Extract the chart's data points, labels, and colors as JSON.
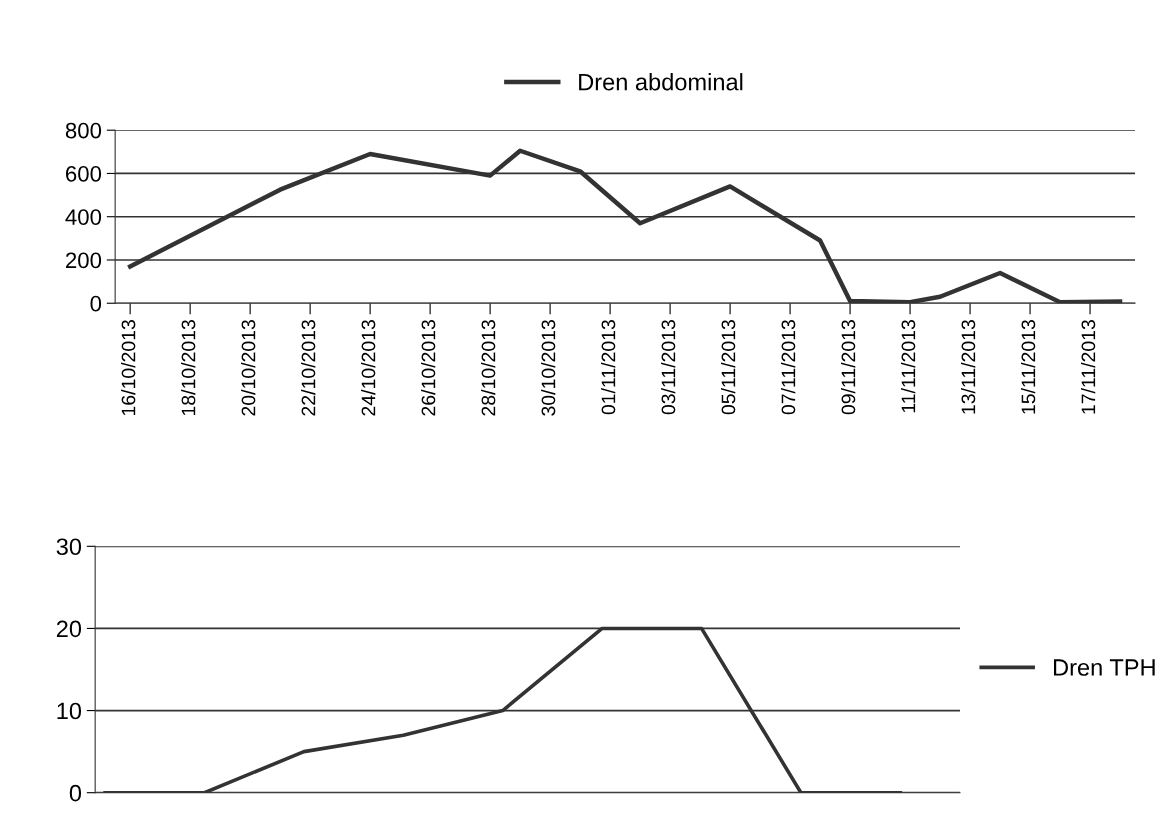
{
  "chart_data": [
    {
      "type": "line",
      "x": [
        "2013-10-16",
        "2013-10-21",
        "2013-10-24",
        "2013-10-28",
        "2013-10-29",
        "2013-10-31",
        "2013-11-02",
        "2013-11-05",
        "2013-11-08",
        "2013-11-09",
        "2013-11-11",
        "2013-11-12",
        "2013-11-14",
        "2013-11-16",
        "2013-11-18"
      ],
      "series": [
        {
          "name": "Dren abdominal",
          "color": "#333333",
          "values": [
            170,
            525,
            690,
            590,
            705,
            610,
            370,
            540,
            290,
            10,
            5,
            30,
            140,
            5,
            8
          ]
        }
      ],
      "xlim": [
        "2013-10-15T12:00",
        "2013-11-18T12:00"
      ],
      "xticks": [
        {
          "value": "2013-10-16",
          "label": "16/10/2013"
        },
        {
          "value": "2013-10-18",
          "label": "18/10/2013"
        },
        {
          "value": "2013-10-20",
          "label": "20/10/2013"
        },
        {
          "value": "2013-10-22",
          "label": "22/10/2013"
        },
        {
          "value": "2013-10-24",
          "label": "24/10/2013"
        },
        {
          "value": "2013-10-26",
          "label": "26/10/2013"
        },
        {
          "value": "2013-10-28",
          "label": "28/10/2013"
        },
        {
          "value": "2013-10-30",
          "label": "30/10/2013"
        },
        {
          "value": "2013-11-01",
          "label": "01/11/2013"
        },
        {
          "value": "2013-11-03",
          "label": "03/11/2013"
        },
        {
          "value": "2013-11-05",
          "label": "05/11/2013"
        },
        {
          "value": "2013-11-07",
          "label": "07/11/2013"
        },
        {
          "value": "2013-11-09",
          "label": "09/11/2013"
        },
        {
          "value": "2013-11-11",
          "label": "11/11/2013"
        },
        {
          "value": "2013-11-13",
          "label": "13/11/2013"
        },
        {
          "value": "2013-11-15",
          "label": "15/11/2013"
        },
        {
          "value": "2013-11-17",
          "label": "17/11/2013"
        }
      ],
      "ylim": [
        0,
        800
      ],
      "yticks": [
        0,
        200,
        400,
        600,
        800
      ],
      "grid": "y",
      "legend": "top"
    },
    {
      "type": "line",
      "categories": [
        null,
        null,
        null,
        null,
        null,
        null,
        null,
        null,
        null
      ],
      "series": [
        {
          "name": "Dren TPH",
          "color": "#333333",
          "values": [
            0,
            0,
            5,
            7,
            10,
            20,
            20,
            0,
            0
          ]
        }
      ],
      "ylim": [
        0,
        30
      ],
      "yticks": [
        0,
        10,
        20,
        30
      ],
      "grid": "y",
      "legend": "right"
    }
  ]
}
